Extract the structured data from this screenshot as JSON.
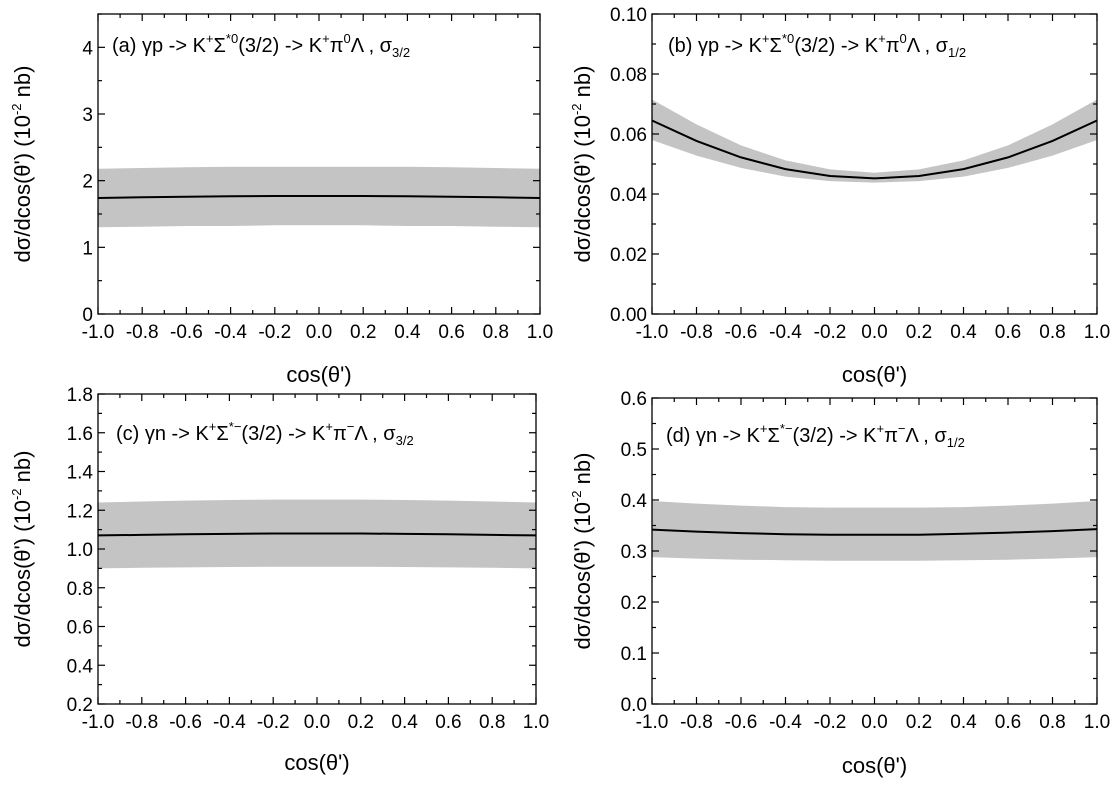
{
  "chart_data": [
    {
      "type": "line",
      "panel": "a",
      "title": {
        "prefix": "(a) γp -> K",
        "sup1": "+",
        "sigma": "Σ",
        "sup2": "*0",
        "mid": "(3/2) -> K",
        "sup3": "+",
        "pi": "π",
        "sup4": "0",
        "end": "Λ ,  σ",
        "sub": "3/2"
      },
      "xlabel": "cos(θ')",
      "ylabel": "dσ/dcos(θ')  (10",
      "ylabel_sup": "-2",
      "ylabel_end": " nb)",
      "xlim": [
        -1.0,
        1.0
      ],
      "ylim": [
        0,
        4.5
      ],
      "xticks": [
        "-1.0",
        "-0.8",
        "-0.6",
        "-0.4",
        "-0.2",
        "0.0",
        "0.2",
        "0.4",
        "0.6",
        "0.8",
        "1.0"
      ],
      "yticks": [
        "0",
        "1",
        "2",
        "3",
        "4"
      ],
      "x": [
        -1.0,
        -0.8,
        -0.6,
        -0.4,
        -0.2,
        0.0,
        0.2,
        0.4,
        0.6,
        0.8,
        1.0
      ],
      "series": [
        {
          "values": [
            1.74,
            1.75,
            1.76,
            1.765,
            1.77,
            1.77,
            1.77,
            1.765,
            1.76,
            1.75,
            1.74
          ]
        }
      ],
      "band_lower": [
        1.3,
        1.31,
        1.32,
        1.32,
        1.33,
        1.33,
        1.33,
        1.32,
        1.32,
        1.31,
        1.3
      ],
      "band_upper": [
        2.18,
        2.19,
        2.2,
        2.21,
        2.21,
        2.21,
        2.21,
        2.21,
        2.2,
        2.19,
        2.18
      ]
    },
    {
      "type": "line",
      "panel": "b",
      "title": {
        "prefix": "(b) γp -> K",
        "sup1": "+",
        "sigma": "Σ",
        "sup2": "*0",
        "mid": "(3/2) -> K",
        "sup3": "+",
        "pi": "π",
        "sup4": "0",
        "end": "Λ ,  σ",
        "sub": "1/2"
      },
      "xlabel": "cos(θ')",
      "ylabel": "dσ/dcos(θ')  (10",
      "ylabel_sup": "-2",
      "ylabel_end": " nb)",
      "xlim": [
        -1.0,
        1.0
      ],
      "ylim": [
        0,
        0.1
      ],
      "xticks": [
        "-1.0",
        "-0.8",
        "-0.6",
        "-0.4",
        "-0.2",
        "0.0",
        "0.2",
        "0.4",
        "0.6",
        "0.8",
        "1.0"
      ],
      "yticks": [
        "0.00",
        "0.02",
        "0.04",
        "0.06",
        "0.08",
        "0.10"
      ],
      "x": [
        -1.0,
        -0.8,
        -0.6,
        -0.4,
        -0.2,
        0.0,
        0.2,
        0.4,
        0.6,
        0.8,
        1.0
      ],
      "series": [
        {
          "values": [
            0.0645,
            0.0577,
            0.0522,
            0.0483,
            0.046,
            0.0452,
            0.046,
            0.0483,
            0.0522,
            0.0577,
            0.0645
          ]
        }
      ],
      "band_lower": [
        0.058,
        0.0528,
        0.0487,
        0.0458,
        0.0443,
        0.0438,
        0.0443,
        0.0458,
        0.0487,
        0.0528,
        0.058
      ],
      "band_upper": [
        0.0715,
        0.0632,
        0.0562,
        0.0512,
        0.0482,
        0.0471,
        0.0482,
        0.0512,
        0.0562,
        0.0632,
        0.0715
      ]
    },
    {
      "type": "line",
      "panel": "c",
      "title": {
        "prefix": "(c) γn -> K",
        "sup1": "+",
        "sigma": "Σ",
        "sup2": "*−",
        "mid": "(3/2) -> K",
        "sup3": "+",
        "pi": "π",
        "sup4": "−",
        "end": "Λ ,  σ",
        "sub": "3/2"
      },
      "xlabel": "cos(θ')",
      "ylabel": "dσ/dcos(θ')  (10",
      "ylabel_sup": "-2",
      "ylabel_end": " nb)",
      "xlim": [
        -1.0,
        1.0
      ],
      "ylim": [
        0.2,
        1.8
      ],
      "xticks": [
        "-1.0",
        "-0.8",
        "-0.6",
        "-0.4",
        "-0.2",
        "0.0",
        "0.2",
        "0.4",
        "0.6",
        "0.8",
        "1.0"
      ],
      "yticks": [
        "0.2",
        "0.4",
        "0.6",
        "0.8",
        "1.0",
        "1.2",
        "1.4",
        "1.6",
        "1.8"
      ],
      "x": [
        -1.0,
        -0.8,
        -0.6,
        -0.4,
        -0.2,
        0.0,
        0.2,
        0.4,
        0.6,
        0.8,
        1.0
      ],
      "series": [
        {
          "values": [
            1.07,
            1.073,
            1.076,
            1.078,
            1.08,
            1.08,
            1.08,
            1.078,
            1.076,
            1.073,
            1.07
          ]
        }
      ],
      "band_lower": [
        0.9,
        0.903,
        0.905,
        0.907,
        0.908,
        0.908,
        0.908,
        0.907,
        0.905,
        0.903,
        0.9
      ],
      "band_upper": [
        1.24,
        1.245,
        1.25,
        1.253,
        1.255,
        1.255,
        1.255,
        1.253,
        1.25,
        1.245,
        1.24
      ]
    },
    {
      "type": "line",
      "panel": "d",
      "title": {
        "prefix": "(d) γn -> K",
        "sup1": "+",
        "sigma": "Σ",
        "sup2": "*−",
        "mid": "(3/2) -> K",
        "sup3": "+",
        "pi": "π",
        "sup4": "−",
        "end": "Λ ,  σ",
        "sub": "1/2"
      },
      "xlabel": "cos(θ')",
      "ylabel": "dσ/dcos(θ')  (10",
      "ylabel_sup": "-2",
      "ylabel_end": " nb)",
      "xlim": [
        -1.0,
        1.0
      ],
      "ylim": [
        0,
        0.6
      ],
      "xticks": [
        "-1.0",
        "-0.8",
        "-0.6",
        "-0.4",
        "-0.2",
        "0.0",
        "0.2",
        "0.4",
        "0.6",
        "0.8",
        "1.0"
      ],
      "yticks": [
        "0.0",
        "0.1",
        "0.2",
        "0.3",
        "0.4",
        "0.5",
        "0.6"
      ],
      "x": [
        -1.0,
        -0.8,
        -0.6,
        -0.4,
        -0.2,
        0.0,
        0.2,
        0.4,
        0.6,
        0.8,
        1.0
      ],
      "series": [
        {
          "values": [
            0.342,
            0.338,
            0.335,
            0.333,
            0.332,
            0.332,
            0.332,
            0.334,
            0.336,
            0.339,
            0.343
          ]
        }
      ],
      "band_lower": [
        0.288,
        0.285,
        0.283,
        0.282,
        0.281,
        0.281,
        0.281,
        0.282,
        0.283,
        0.285,
        0.288
      ],
      "band_upper": [
        0.398,
        0.393,
        0.389,
        0.386,
        0.385,
        0.385,
        0.385,
        0.386,
        0.389,
        0.393,
        0.398
      ]
    }
  ],
  "colors": {
    "band": "#c4c4c4",
    "line": "#000000",
    "axis": "#000000"
  }
}
